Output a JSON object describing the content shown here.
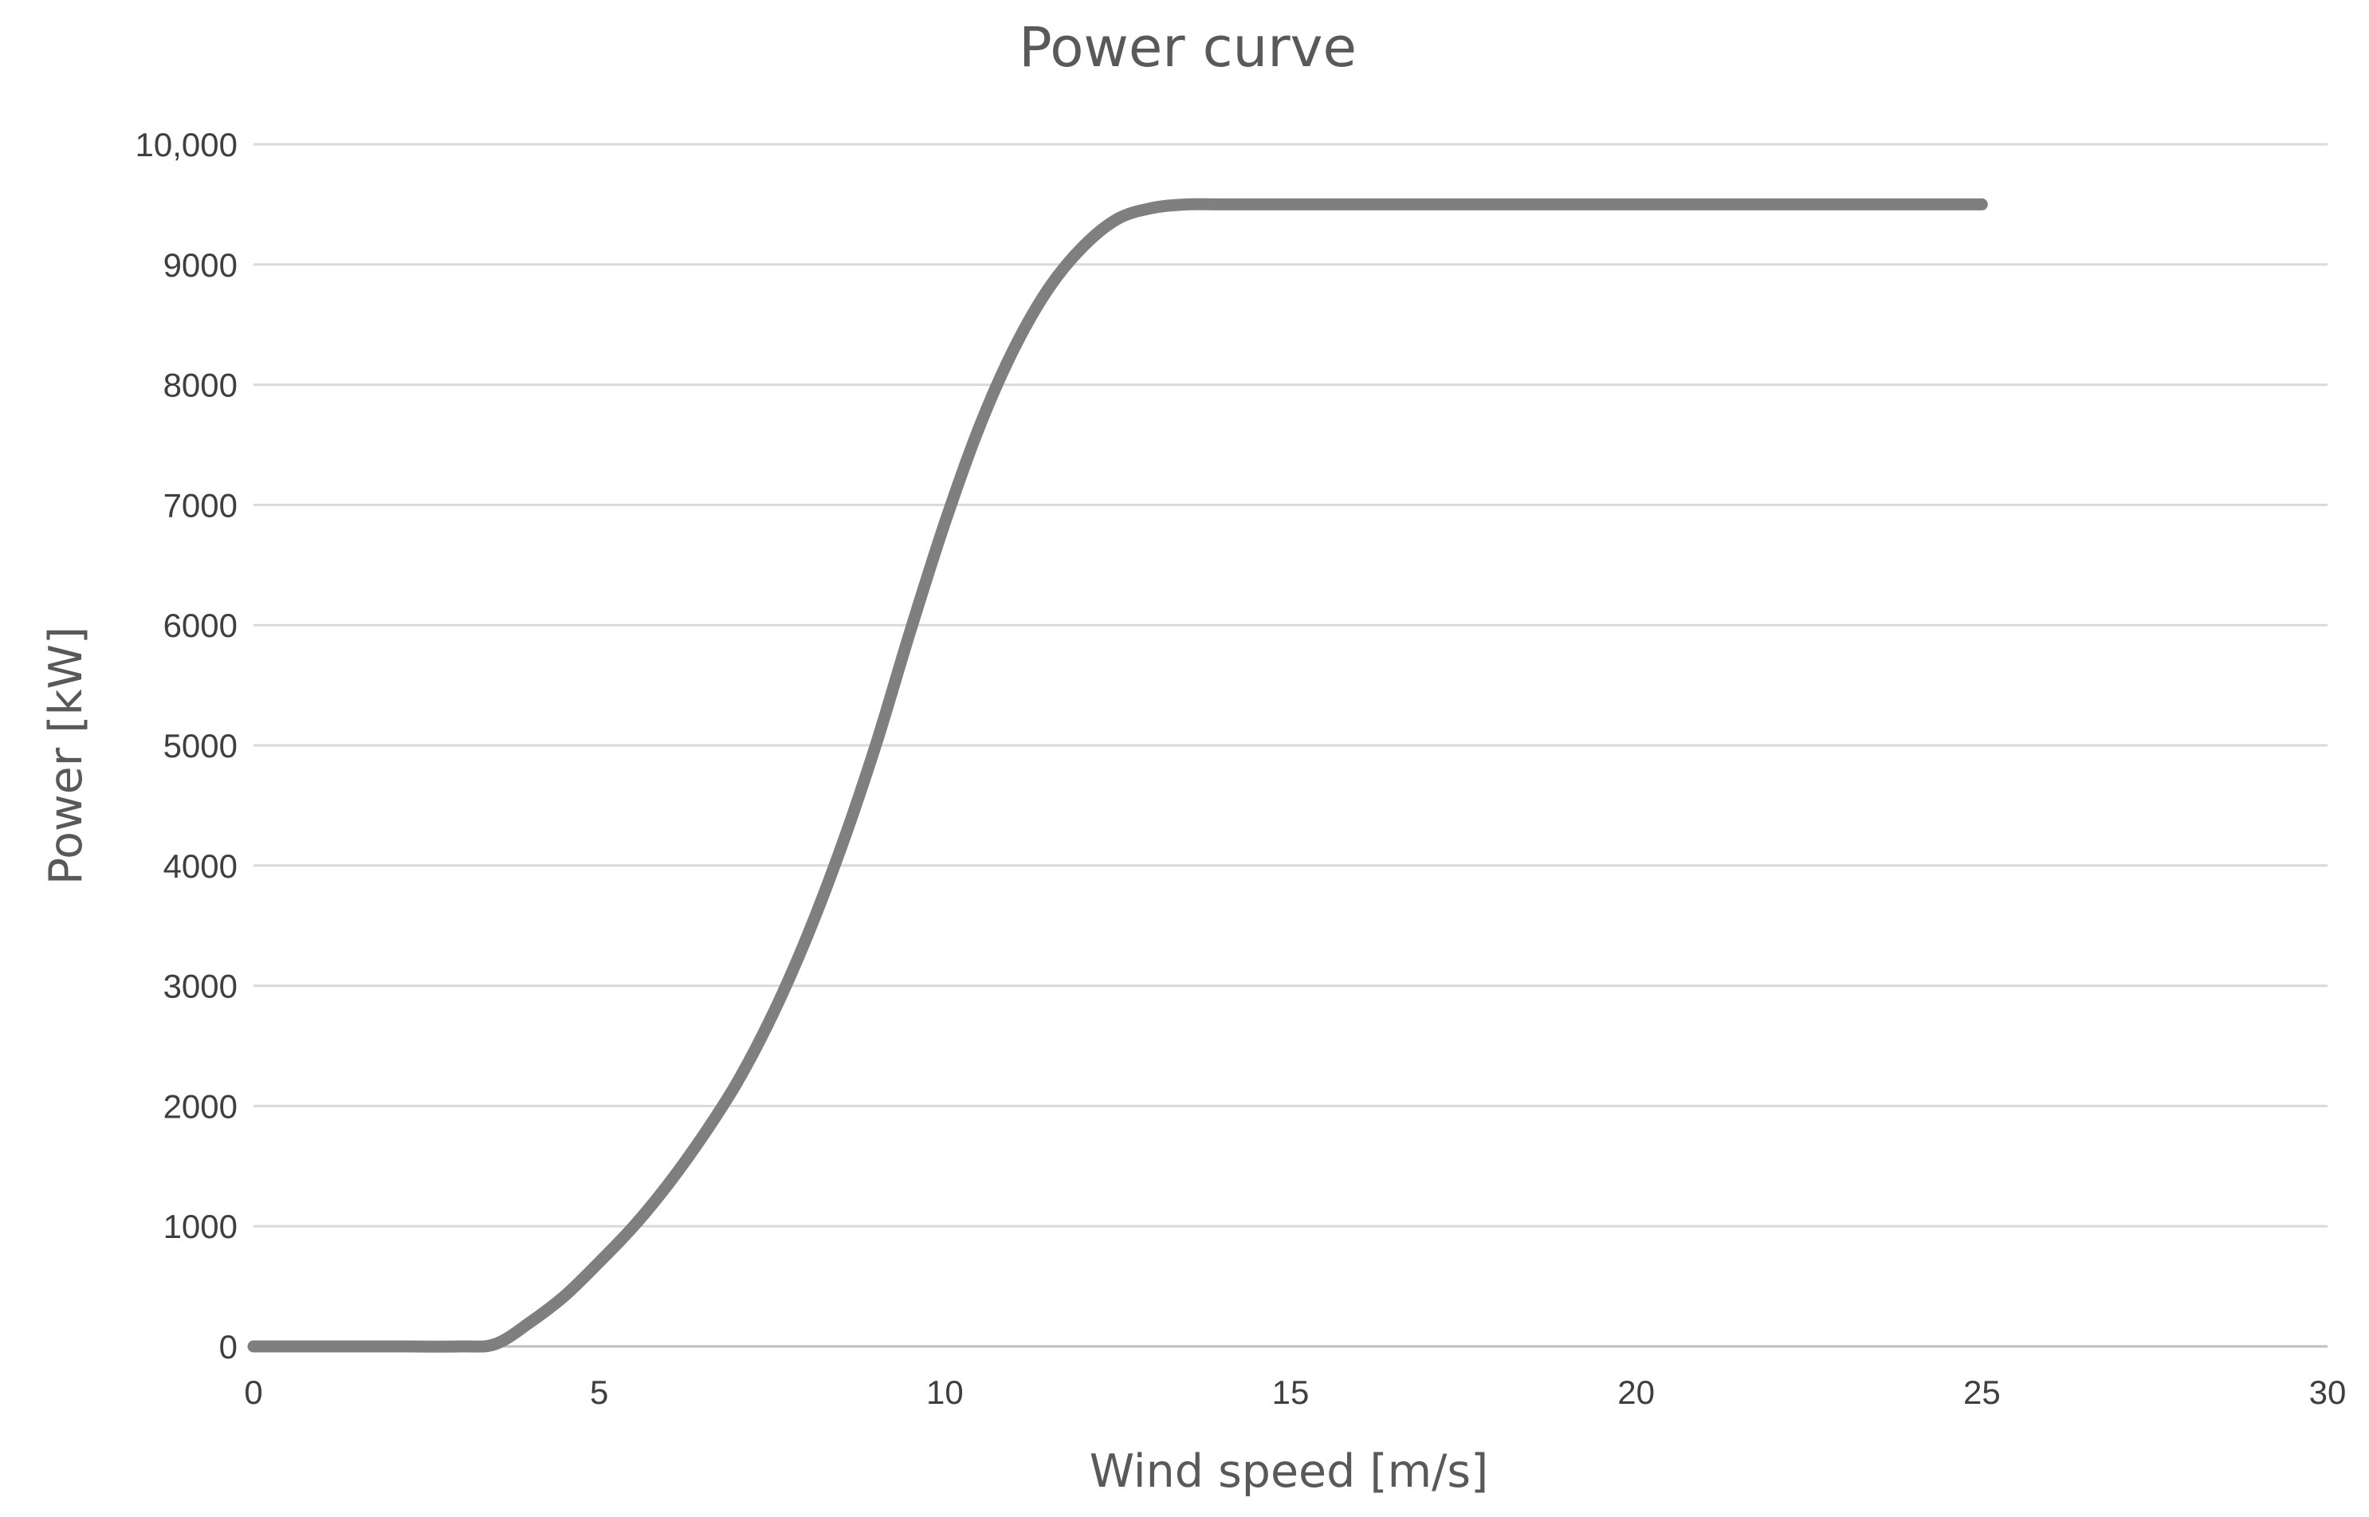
{
  "chart_data": {
    "type": "line",
    "title": "Power curve",
    "xlabel": "Wind speed [m/s]",
    "ylabel": "Power [kW]",
    "xlim": [
      0,
      30
    ],
    "ylim": [
      0,
      10000
    ],
    "x_ticks": [
      0,
      5,
      10,
      15,
      20,
      25,
      30
    ],
    "x_tick_labels": [
      "0",
      "5",
      "10",
      "15",
      "20",
      "25",
      "30"
    ],
    "y_ticks": [
      0,
      1000,
      2000,
      3000,
      4000,
      5000,
      6000,
      7000,
      8000,
      9000,
      10000
    ],
    "y_tick_labels": [
      "0",
      "1000",
      "2000",
      "3000",
      "4000",
      "5000",
      "6000",
      "7000",
      "8000",
      "9000",
      "10,000"
    ],
    "grid": true,
    "legend": "none",
    "series": [
      {
        "name": "Power curve",
        "color": "#7f7f7f",
        "x": [
          0,
          1,
          2,
          3,
          3.5,
          4,
          4.5,
          5,
          5.5,
          6,
          6.5,
          7,
          7.5,
          8,
          8.5,
          9,
          9.5,
          10,
          10.5,
          11,
          11.5,
          12,
          12.5,
          13,
          13.5,
          14,
          14.5,
          15,
          16,
          17,
          18,
          19,
          20,
          21,
          22,
          23,
          24,
          25
        ],
        "y": [
          0,
          0,
          0,
          0,
          20,
          200,
          420,
          700,
          1000,
          1350,
          1750,
          2200,
          2750,
          3400,
          4150,
          5000,
          5950,
          6850,
          7650,
          8300,
          8800,
          9150,
          9380,
          9470,
          9500,
          9500,
          9500,
          9500,
          9500,
          9500,
          9500,
          9500,
          9500,
          9500,
          9500,
          9500,
          9500,
          9500
        ]
      }
    ]
  }
}
